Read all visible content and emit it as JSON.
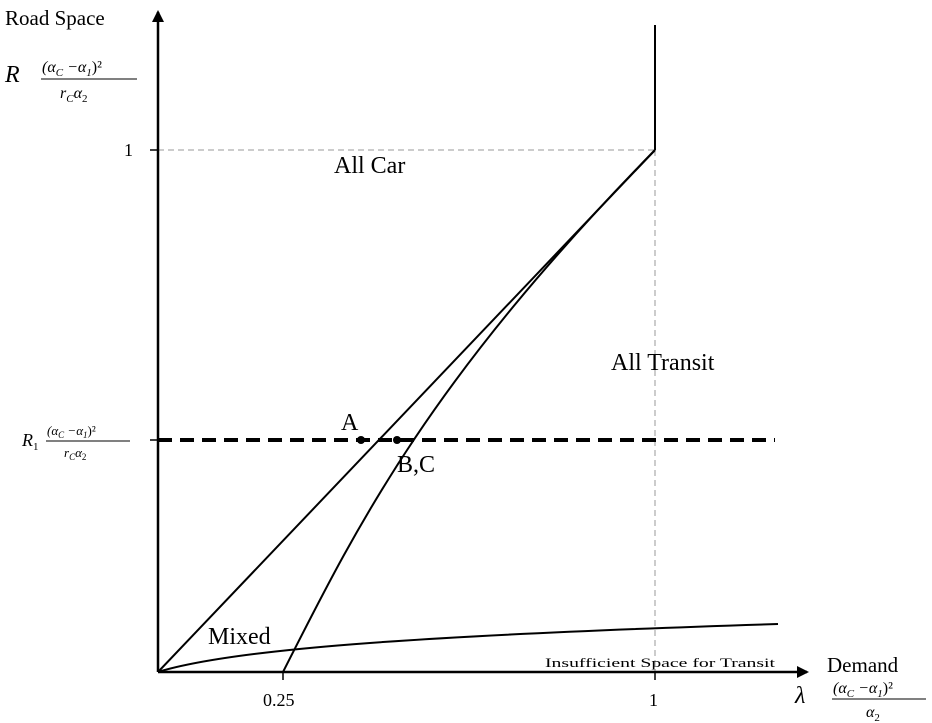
{
  "diagram": {
    "y_axis": {
      "title": "Road Space",
      "symbol": "R",
      "unit_numerator": "(α",
      "unit_sub_c": "C",
      "unit_mid": " −α",
      "unit_sub_1": "1",
      "unit_close": ")²",
      "unit_den_r": "r",
      "unit_den_alpha": "α",
      "unit_den_sub_2": "2",
      "tick_one": "1"
    },
    "x_axis": {
      "title": "Demand",
      "symbol": "λ",
      "unit_numerator": "(α",
      "unit_sub_c": "C",
      "unit_mid": " −α",
      "unit_sub_1": "1",
      "unit_close": ")²",
      "unit_den_alpha": "α",
      "unit_den_sub_2": "2",
      "tick_quarter": "0.25",
      "tick_one": "1"
    },
    "threshold": {
      "symbol": "R",
      "sub": "1"
    },
    "regions": {
      "all_car": "All Car",
      "all_transit": "All Transit",
      "mixed": "Mixed",
      "insufficient": "Insufficient Space for Transit"
    },
    "points": {
      "a": "A",
      "bc": "B,C"
    }
  }
}
